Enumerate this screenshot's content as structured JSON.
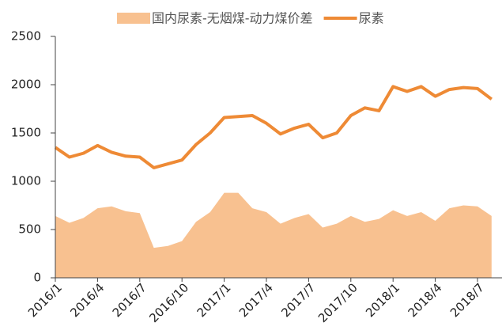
{
  "chart_data": {
    "type": "line",
    "categories": [
      "2016/1",
      null,
      null,
      "2016/4",
      null,
      null,
      "2016/7",
      null,
      null,
      "2016/10",
      null,
      null,
      "2017/1",
      null,
      null,
      "2017/4",
      null,
      null,
      "2017/7",
      null,
      null,
      "2017/10",
      null,
      null,
      "2018/1",
      null,
      null,
      "2018/4",
      null,
      null,
      "2018/7",
      null
    ],
    "series": [
      {
        "name": "国内尿素-无烟煤-动力煤价差",
        "type": "area",
        "color": "#f8c190",
        "values": [
          640,
          570,
          620,
          720,
          740,
          690,
          670,
          310,
          330,
          380,
          580,
          680,
          880,
          880,
          720,
          680,
          560,
          620,
          660,
          520,
          560,
          640,
          580,
          610,
          700,
          640,
          680,
          590,
          720,
          750,
          740,
          640
        ]
      },
      {
        "name": "尿素",
        "type": "line",
        "color": "#ee8a35",
        "values": [
          1350,
          1250,
          1290,
          1370,
          1300,
          1260,
          1250,
          1140,
          1180,
          1220,
          1380,
          1500,
          1660,
          1670,
          1680,
          1600,
          1490,
          1550,
          1590,
          1450,
          1500,
          1680,
          1760,
          1730,
          1980,
          1930,
          1980,
          1880,
          1950,
          1970,
          1960,
          1850
        ]
      }
    ],
    "ylim": [
      0,
      2500
    ],
    "yticks": [
      0,
      500,
      1000,
      1500,
      2000,
      2500
    ]
  }
}
